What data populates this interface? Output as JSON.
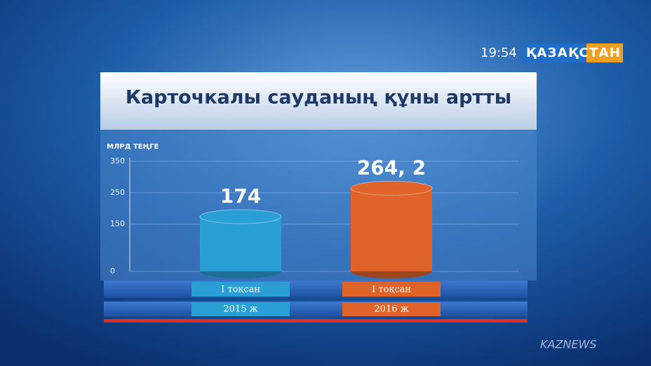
{
  "chart_data": {
    "type": "bar",
    "title": "Карточкалы сауданың құны артты",
    "y_axis_label": "МЛРД ТЕҢГЕ",
    "categories": [
      "I тоқсан",
      "I тоқсан"
    ],
    "category_groups": [
      "2015 ж",
      "2016 ж"
    ],
    "values": [
      174,
      264.2
    ],
    "value_labels": [
      "174",
      "264, 2"
    ],
    "colors": [
      "#2a9fd6",
      "#e0642a"
    ],
    "ylim": [
      0,
      350
    ],
    "yticks": [
      0,
      150,
      250,
      350
    ],
    "grid": true
  },
  "overlay": {
    "time": "19:54",
    "channel": "ҚАЗАҚСТАН",
    "watermark": "KAZNEWS"
  }
}
